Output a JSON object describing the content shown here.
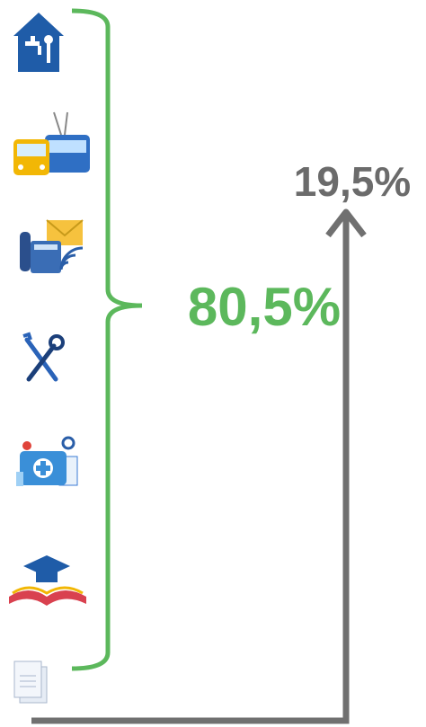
{
  "shares": {
    "main": "80,5%",
    "other": "19,5%"
  }
}
